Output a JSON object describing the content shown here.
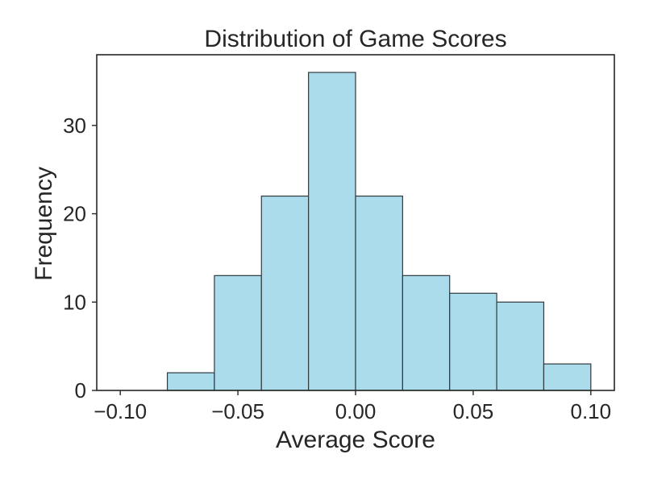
{
  "chart_data": {
    "type": "bar",
    "title": "Distribution of Game Scores",
    "xlabel": "Average Score",
    "ylabel": "Frequency",
    "xlim": [
      -0.11,
      0.11
    ],
    "ylim": [
      0,
      38
    ],
    "x_ticks": [
      -0.1,
      -0.05,
      0.0,
      0.05,
      0.1
    ],
    "x_tick_labels": [
      "−0.10",
      "−0.05",
      "0.00",
      "0.05",
      "0.10"
    ],
    "y_ticks": [
      0,
      10,
      20,
      30
    ],
    "y_tick_labels": [
      "0",
      "10",
      "20",
      "30"
    ],
    "bins": [
      {
        "start": -0.1,
        "end": -0.08,
        "count": 0
      },
      {
        "start": -0.08,
        "end": -0.06,
        "count": 2
      },
      {
        "start": -0.06,
        "end": -0.04,
        "count": 13
      },
      {
        "start": -0.04,
        "end": -0.02,
        "count": 22
      },
      {
        "start": -0.02,
        "end": 0.0,
        "count": 36
      },
      {
        "start": 0.0,
        "end": 0.02,
        "count": 22
      },
      {
        "start": 0.02,
        "end": 0.04,
        "count": 13
      },
      {
        "start": 0.04,
        "end": 0.06,
        "count": 11
      },
      {
        "start": 0.06,
        "end": 0.08,
        "count": 10
      },
      {
        "start": 0.08,
        "end": 0.1,
        "count": 3
      }
    ],
    "grid": false,
    "colors": {
      "bar_fill": "#ABDCEC",
      "bar_edge": "#2F3A3F",
      "axis": "#262626"
    }
  }
}
